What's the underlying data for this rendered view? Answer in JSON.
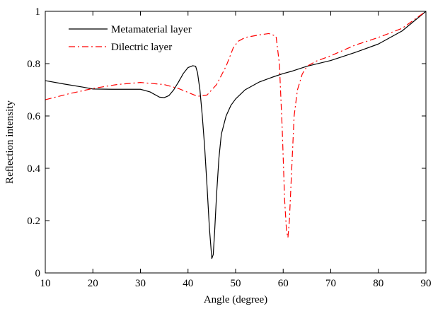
{
  "chart_data": {
    "type": "line",
    "title": "",
    "xlabel": "Angle (degree)",
    "ylabel": "Reflection intensity",
    "xlim": [
      10,
      90
    ],
    "ylim": [
      0,
      1
    ],
    "xticks": [
      10,
      20,
      30,
      40,
      50,
      60,
      70,
      80,
      90
    ],
    "yticks": [
      0,
      0.2,
      0.4,
      0.6,
      0.8,
      1
    ],
    "ytick_labels": [
      "0",
      "0.2",
      "0.4",
      "0.6",
      "0.8",
      "1"
    ],
    "grid": false,
    "legend_position": "top-left",
    "series": [
      {
        "name": "Metamaterial layer",
        "color": "#000000",
        "style": "solid",
        "x": [
          10,
          14,
          18,
          20,
          24,
          28,
          30,
          32,
          34,
          35,
          36,
          37,
          38,
          39,
          40,
          41,
          41.6,
          42,
          42.5,
          43,
          43.5,
          44,
          44.5,
          45,
          45.3,
          45.6,
          46,
          46.5,
          47,
          48,
          49,
          50,
          52,
          55,
          58,
          60,
          62,
          65,
          70,
          75,
          80,
          85,
          90
        ],
        "y": [
          0.735,
          0.722,
          0.71,
          0.703,
          0.702,
          0.702,
          0.702,
          0.692,
          0.672,
          0.67,
          0.678,
          0.7,
          0.73,
          0.762,
          0.785,
          0.792,
          0.79,
          0.765,
          0.7,
          0.6,
          0.48,
          0.33,
          0.17,
          0.055,
          0.07,
          0.16,
          0.3,
          0.44,
          0.53,
          0.6,
          0.64,
          0.665,
          0.7,
          0.73,
          0.75,
          0.762,
          0.772,
          0.79,
          0.812,
          0.842,
          0.875,
          0.925,
          1.0
        ]
      },
      {
        "name": "Dilectric layer",
        "color": "#ff0000",
        "style": "dash-dot",
        "x": [
          10,
          15,
          20,
          25,
          30,
          35,
          38,
          40,
          42,
          44,
          46,
          48,
          49.5,
          50.5,
          52,
          55,
          57,
          58.5,
          59.2,
          59.8,
          60.3,
          60.7,
          61,
          61.3,
          61.8,
          62.3,
          63,
          64,
          65,
          67,
          70,
          75,
          80,
          85,
          90
        ],
        "y": [
          0.662,
          0.685,
          0.705,
          0.72,
          0.728,
          0.72,
          0.705,
          0.69,
          0.675,
          0.68,
          0.72,
          0.79,
          0.86,
          0.885,
          0.9,
          0.91,
          0.915,
          0.905,
          0.8,
          0.55,
          0.28,
          0.16,
          0.135,
          0.2,
          0.4,
          0.6,
          0.7,
          0.76,
          0.79,
          0.81,
          0.83,
          0.87,
          0.9,
          0.935,
          1.0
        ]
      }
    ]
  }
}
